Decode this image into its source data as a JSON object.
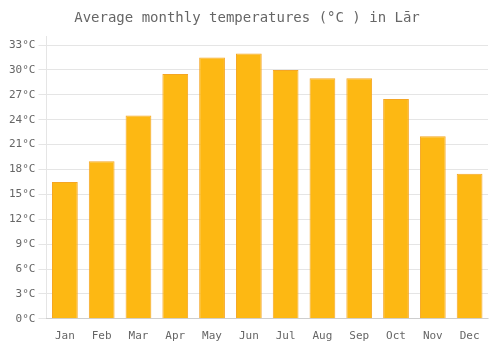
{
  "chart_data": {
    "type": "bar",
    "title": "Average monthly temperatures (°C ) in Lār",
    "categories": [
      "Jan",
      "Feb",
      "Mar",
      "Apr",
      "May",
      "Jun",
      "Jul",
      "Aug",
      "Sep",
      "Oct",
      "Nov",
      "Dec"
    ],
    "values": [
      16.5,
      19.0,
      24.5,
      29.5,
      31.5,
      32.0,
      30.0,
      29.0,
      29.0,
      26.5,
      22.0,
      17.5
    ],
    "color": "#FDB813",
    "ylim": [
      0,
      34
    ],
    "yticks": [
      {
        "value": 0,
        "label": "0°C"
      },
      {
        "value": 3,
        "label": "3°C"
      },
      {
        "value": 6,
        "label": "6°C"
      },
      {
        "value": 9,
        "label": "9°C"
      },
      {
        "value": 12,
        "label": "12°C"
      },
      {
        "value": 15,
        "label": "15°C"
      },
      {
        "value": 18,
        "label": "18°C"
      },
      {
        "value": 21,
        "label": "21°C"
      },
      {
        "value": 24,
        "label": "24°C"
      },
      {
        "value": 27,
        "label": "27°C"
      },
      {
        "value": 30,
        "label": "30°C"
      },
      {
        "value": 33,
        "label": "33°C"
      }
    ],
    "grid": true
  }
}
